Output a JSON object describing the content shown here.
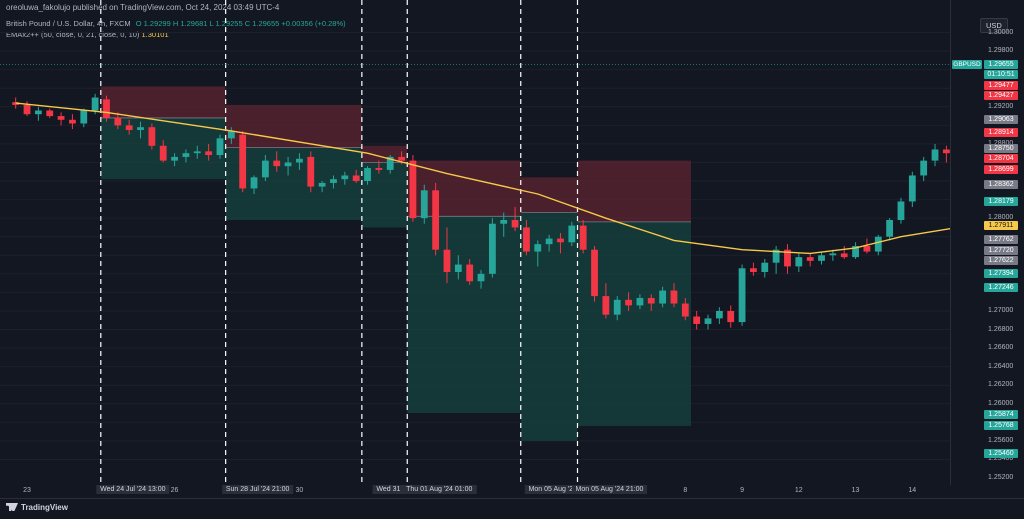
{
  "header": {
    "published": "oreoluwa_fakolujo published on TradingView.com, Oct 24, 2024 03:49 UTC-4",
    "symbol_desc": "British Pound / U.S. Dollar, 4h, FXCM",
    "ohlc": "O 1.29299 H 1.29681 L 1.29255 C 1.29655 +0.00356 (+0.28%)",
    "ema_label": "EMAx2++ (50, close, 0, 21, close, 0, 10)",
    "ema_value": "1.30101",
    "currency_button": "USD"
  },
  "footer": {
    "brand": "TradingView"
  },
  "colors": {
    "bg": "#131722",
    "up": "#26a69a",
    "down": "#f23645",
    "ema": "#f7c948",
    "stop_zone": "#5c2430",
    "target_zone": "#15443f"
  },
  "chart_data": {
    "type": "candlestick",
    "symbol": "GBPUSD",
    "timeframe": "4h",
    "ylim": [
      1.252,
      1.302
    ],
    "y_ticks": [
      "1.30000",
      "1.29800",
      "1.29200",
      "1.28800",
      "1.28000",
      "1.27000",
      "1.26800",
      "1.26600",
      "1.26400",
      "1.26200",
      "1.26000",
      "1.25600",
      "1.25400",
      "1.25200"
    ],
    "x_labels": [
      {
        "i": 1,
        "text": "23"
      },
      {
        "i": 14,
        "text": "26"
      },
      {
        "i": 25,
        "text": "30"
      },
      {
        "i": 38,
        "text": "2"
      },
      {
        "i": 54,
        "text": "7"
      },
      {
        "i": 59,
        "text": "8"
      },
      {
        "i": 64,
        "text": "9"
      },
      {
        "i": 69,
        "text": "12"
      },
      {
        "i": 74,
        "text": "13"
      },
      {
        "i": 79,
        "text": "14"
      }
    ],
    "x_highlight": [
      {
        "i": 8,
        "text": "Wed 24 Jul '24  13:00"
      },
      {
        "i": 19,
        "text": "Sun 28 Jul '24  21:00"
      },
      {
        "i": 31,
        "text": "Wed 31 Jul"
      },
      {
        "i": 35,
        "text": "Thu 01 Aug '24  01:00"
      },
      {
        "i": 45,
        "text": "Mon 05 Aug '24"
      },
      {
        "i": 50,
        "text": "Mon 05 Aug '24  21:00"
      }
    ],
    "vlines": [
      8,
      19,
      31,
      35,
      45,
      50
    ],
    "candles": [
      [
        1.2925,
        1.293,
        1.2918,
        1.2922
      ],
      [
        1.2922,
        1.2926,
        1.291,
        1.2912
      ],
      [
        1.2912,
        1.292,
        1.2905,
        1.2916
      ],
      [
        1.2916,
        1.2918,
        1.2908,
        1.291
      ],
      [
        1.291,
        1.2914,
        1.29,
        1.2906
      ],
      [
        1.2906,
        1.2912,
        1.2896,
        1.2902
      ],
      [
        1.2902,
        1.2918,
        1.2898,
        1.2916
      ],
      [
        1.2916,
        1.2934,
        1.2912,
        1.293
      ],
      [
        1.2928,
        1.2932,
        1.2904,
        1.2908
      ],
      [
        1.2908,
        1.2914,
        1.2896,
        1.29
      ],
      [
        1.29,
        1.2906,
        1.289,
        1.2895
      ],
      [
        1.2895,
        1.2904,
        1.2886,
        1.2898
      ],
      [
        1.2898,
        1.2902,
        1.2874,
        1.2878
      ],
      [
        1.2878,
        1.2884,
        1.286,
        1.2862
      ],
      [
        1.2862,
        1.287,
        1.2856,
        1.2866
      ],
      [
        1.2866,
        1.2874,
        1.286,
        1.287
      ],
      [
        1.287,
        1.2878,
        1.2864,
        1.2872
      ],
      [
        1.2872,
        1.288,
        1.2862,
        1.2868
      ],
      [
        1.2868,
        1.289,
        1.2864,
        1.2886
      ],
      [
        1.2886,
        1.2898,
        1.288,
        1.2894
      ],
      [
        1.289,
        1.2894,
        1.2828,
        1.2832
      ],
      [
        1.2832,
        1.2846,
        1.2826,
        1.2844
      ],
      [
        1.2844,
        1.2868,
        1.284,
        1.2862
      ],
      [
        1.2862,
        1.2872,
        1.285,
        1.2856
      ],
      [
        1.2856,
        1.2866,
        1.2846,
        1.286
      ],
      [
        1.286,
        1.287,
        1.2852,
        1.2864
      ],
      [
        1.2866,
        1.2872,
        1.2828,
        1.2834
      ],
      [
        1.2834,
        1.284,
        1.2828,
        1.2838
      ],
      [
        1.2838,
        1.2846,
        1.2832,
        1.2842
      ],
      [
        1.2842,
        1.285,
        1.2836,
        1.2846
      ],
      [
        1.2846,
        1.2852,
        1.2838,
        1.284
      ],
      [
        1.284,
        1.2856,
        1.2836,
        1.2854
      ],
      [
        1.2854,
        1.2862,
        1.2848,
        1.2852
      ],
      [
        1.2852,
        1.2868,
        1.2848,
        1.2866
      ],
      [
        1.2866,
        1.2872,
        1.2858,
        1.2862
      ],
      [
        1.2862,
        1.2868,
        1.2796,
        1.28
      ],
      [
        1.28,
        1.2836,
        1.2794,
        1.283
      ],
      [
        1.283,
        1.2838,
        1.276,
        1.2766
      ],
      [
        1.2766,
        1.279,
        1.273,
        1.2742
      ],
      [
        1.2742,
        1.276,
        1.2734,
        1.275
      ],
      [
        1.275,
        1.2756,
        1.2728,
        1.2732
      ],
      [
        1.2732,
        1.2744,
        1.2724,
        1.274
      ],
      [
        1.274,
        1.28,
        1.2736,
        1.2794
      ],
      [
        1.2794,
        1.2806,
        1.278,
        1.2798
      ],
      [
        1.2798,
        1.2812,
        1.2786,
        1.279
      ],
      [
        1.279,
        1.2798,
        1.276,
        1.2764
      ],
      [
        1.2764,
        1.2776,
        1.2748,
        1.2772
      ],
      [
        1.2772,
        1.2782,
        1.2764,
        1.2778
      ],
      [
        1.2778,
        1.2784,
        1.2762,
        1.2774
      ],
      [
        1.2774,
        1.2796,
        1.277,
        1.2792
      ],
      [
        1.2792,
        1.2798,
        1.2762,
        1.2766
      ],
      [
        1.2766,
        1.277,
        1.271,
        1.2716
      ],
      [
        1.2716,
        1.273,
        1.2692,
        1.2696
      ],
      [
        1.2696,
        1.2716,
        1.269,
        1.2712
      ],
      [
        1.2712,
        1.272,
        1.27,
        1.2706
      ],
      [
        1.2706,
        1.2718,
        1.2702,
        1.2714
      ],
      [
        1.2714,
        1.2718,
        1.27,
        1.2708
      ],
      [
        1.2708,
        1.2726,
        1.2704,
        1.2722
      ],
      [
        1.2722,
        1.273,
        1.2704,
        1.2708
      ],
      [
        1.2708,
        1.2714,
        1.269,
        1.2694
      ],
      [
        1.2694,
        1.27,
        1.268,
        1.2686
      ],
      [
        1.2686,
        1.2696,
        1.268,
        1.2692
      ],
      [
        1.2692,
        1.2704,
        1.2686,
        1.27
      ],
      [
        1.27,
        1.2706,
        1.2682,
        1.2688
      ],
      [
        1.2688,
        1.275,
        1.2684,
        1.2746
      ],
      [
        1.2746,
        1.2752,
        1.2738,
        1.2742
      ],
      [
        1.2742,
        1.2756,
        1.2736,
        1.2752
      ],
      [
        1.2752,
        1.277,
        1.274,
        1.2766
      ],
      [
        1.2766,
        1.2772,
        1.274,
        1.2748
      ],
      [
        1.2748,
        1.2762,
        1.2742,
        1.2758
      ],
      [
        1.2758,
        1.2762,
        1.2748,
        1.2754
      ],
      [
        1.2754,
        1.2764,
        1.275,
        1.276
      ],
      [
        1.276,
        1.2766,
        1.2754,
        1.2762
      ],
      [
        1.2762,
        1.277,
        1.2756,
        1.2758
      ],
      [
        1.2758,
        1.2774,
        1.2756,
        1.277
      ],
      [
        1.277,
        1.2778,
        1.2762,
        1.2764
      ],
      [
        1.2764,
        1.2782,
        1.276,
        1.278
      ],
      [
        1.278,
        1.28,
        1.2776,
        1.2798
      ],
      [
        1.2798,
        1.2822,
        1.2794,
        1.2818
      ],
      [
        1.2818,
        1.285,
        1.2812,
        1.2846
      ],
      [
        1.2846,
        1.2866,
        1.284,
        1.2862
      ],
      [
        1.2862,
        1.288,
        1.2856,
        1.2874
      ],
      [
        1.2874,
        1.2878,
        1.286,
        1.287
      ],
      [
        1.287,
        1.2874,
        1.2852,
        1.286
      ],
      [
        1.286,
        1.2872,
        1.2832,
        1.2866
      ],
      [
        1.2866,
        1.287,
        1.2852,
        1.2856
      ],
      [
        1.2856,
        1.2862,
        1.2836,
        1.284
      ],
      [
        1.284,
        1.2848,
        1.2834,
        1.2846
      ]
    ],
    "ema": [
      [
        0,
        1.2924
      ],
      [
        8,
        1.2914
      ],
      [
        19,
        1.2894
      ],
      [
        31,
        1.287
      ],
      [
        38,
        1.2848
      ],
      [
        46,
        1.2826
      ],
      [
        52,
        1.28
      ],
      [
        58,
        1.2776
      ],
      [
        64,
        1.2766
      ],
      [
        70,
        1.2762
      ],
      [
        74,
        1.2768
      ],
      [
        78,
        1.278
      ],
      [
        83,
        1.279
      ],
      [
        85,
        1.2794
      ]
    ],
    "positions": [
      {
        "start": 8,
        "end": 19,
        "entry": 1.2908,
        "stop": 1.2942,
        "target": 1.2842
      },
      {
        "start": 19,
        "end": 31,
        "entry": 1.2876,
        "stop": 1.2922,
        "target": 1.2798
      },
      {
        "start": 31,
        "end": 35,
        "entry": 1.286,
        "stop": 1.2878,
        "target": 1.279
      },
      {
        "start": 35,
        "end": 45,
        "entry": 1.2802,
        "stop": 1.2862,
        "target": 1.259
      },
      {
        "start": 45,
        "end": 50,
        "entry": 1.2806,
        "stop": 1.2844,
        "target": 1.256
      },
      {
        "start": 50,
        "end": 60,
        "entry": 1.2796,
        "stop": 1.2862,
        "target": 1.2576
      }
    ],
    "price_labels": [
      {
        "text": "GBPUSD",
        "y": 1.29655,
        "color": "#26a69a",
        "pair": true
      },
      {
        "text": "1.29655",
        "y": 1.29655,
        "color": "#26a69a"
      },
      {
        "text": "01:10:51",
        "y": 1.29555,
        "color": "#26a69a"
      },
      {
        "text": "1.29477",
        "y": 1.29477,
        "color": "#f23645"
      },
      {
        "text": "1.29427",
        "y": 1.29427,
        "color": "#f23645"
      },
      {
        "text": "1.29063",
        "y": 1.29063,
        "color": "#787b86"
      },
      {
        "text": "1.28914",
        "y": 1.28914,
        "color": "#f23645"
      },
      {
        "text": "1.28750",
        "y": 1.2875,
        "color": "#787b86"
      },
      {
        "text": "1.28704",
        "y": 1.28704,
        "color": "#f23645"
      },
      {
        "text": "1.28699",
        "y": 1.28699,
        "color": "#f23645"
      },
      {
        "text": "1.28362",
        "y": 1.28362,
        "color": "#787b86"
      },
      {
        "text": "1.28179",
        "y": 1.28179,
        "color": "#26a69a"
      },
      {
        "text": "1.27911",
        "y": 1.27911,
        "color": "#f7c948",
        "dark": true
      },
      {
        "text": "1.27762",
        "y": 1.27762,
        "color": "#787b86"
      },
      {
        "text": "1.27720",
        "y": 1.2772,
        "color": "#787b86"
      },
      {
        "text": "1.27622",
        "y": 1.27622,
        "color": "#787b86"
      },
      {
        "text": "1.27394",
        "y": 1.27394,
        "color": "#26a69a"
      },
      {
        "text": "1.27246",
        "y": 1.27246,
        "color": "#26a69a"
      },
      {
        "text": "1.25874",
        "y": 1.25874,
        "color": "#26a69a"
      },
      {
        "text": "1.25768",
        "y": 1.25768,
        "color": "#26a69a"
      },
      {
        "text": "1.25460",
        "y": 1.2546,
        "color": "#26a69a"
      }
    ]
  }
}
